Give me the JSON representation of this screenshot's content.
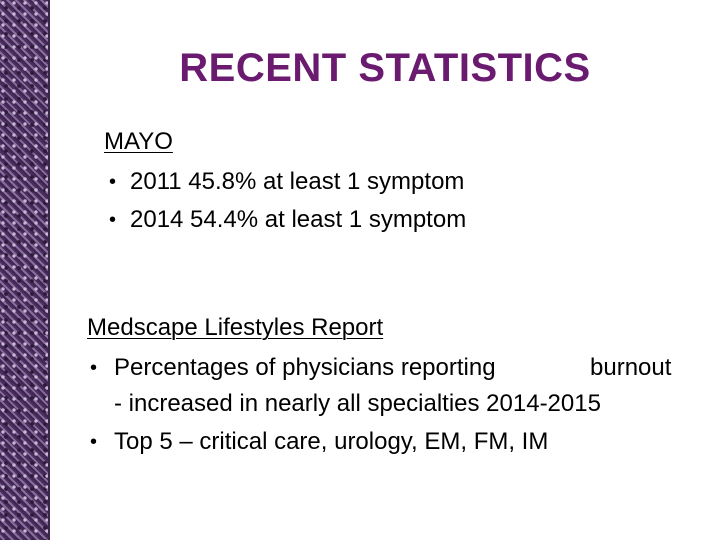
{
  "slide": {
    "title": "RECENT STATISTICS",
    "section1": {
      "heading": "MAYO",
      "bullets": [
        "2011 45.8% at least 1 symptom",
        "2014 54.4% at least 1 symptom"
      ]
    },
    "section2": {
      "heading": "Medscape Lifestyles Report",
      "bullets": [
        "Percentages of physicians reporting",
        "Top 5 – critical care, urology, EM, FM, IM"
      ],
      "bullet1_tail": "burnout",
      "bullet1_continuation": "- increased in nearly all specialties 2014-2015"
    }
  }
}
